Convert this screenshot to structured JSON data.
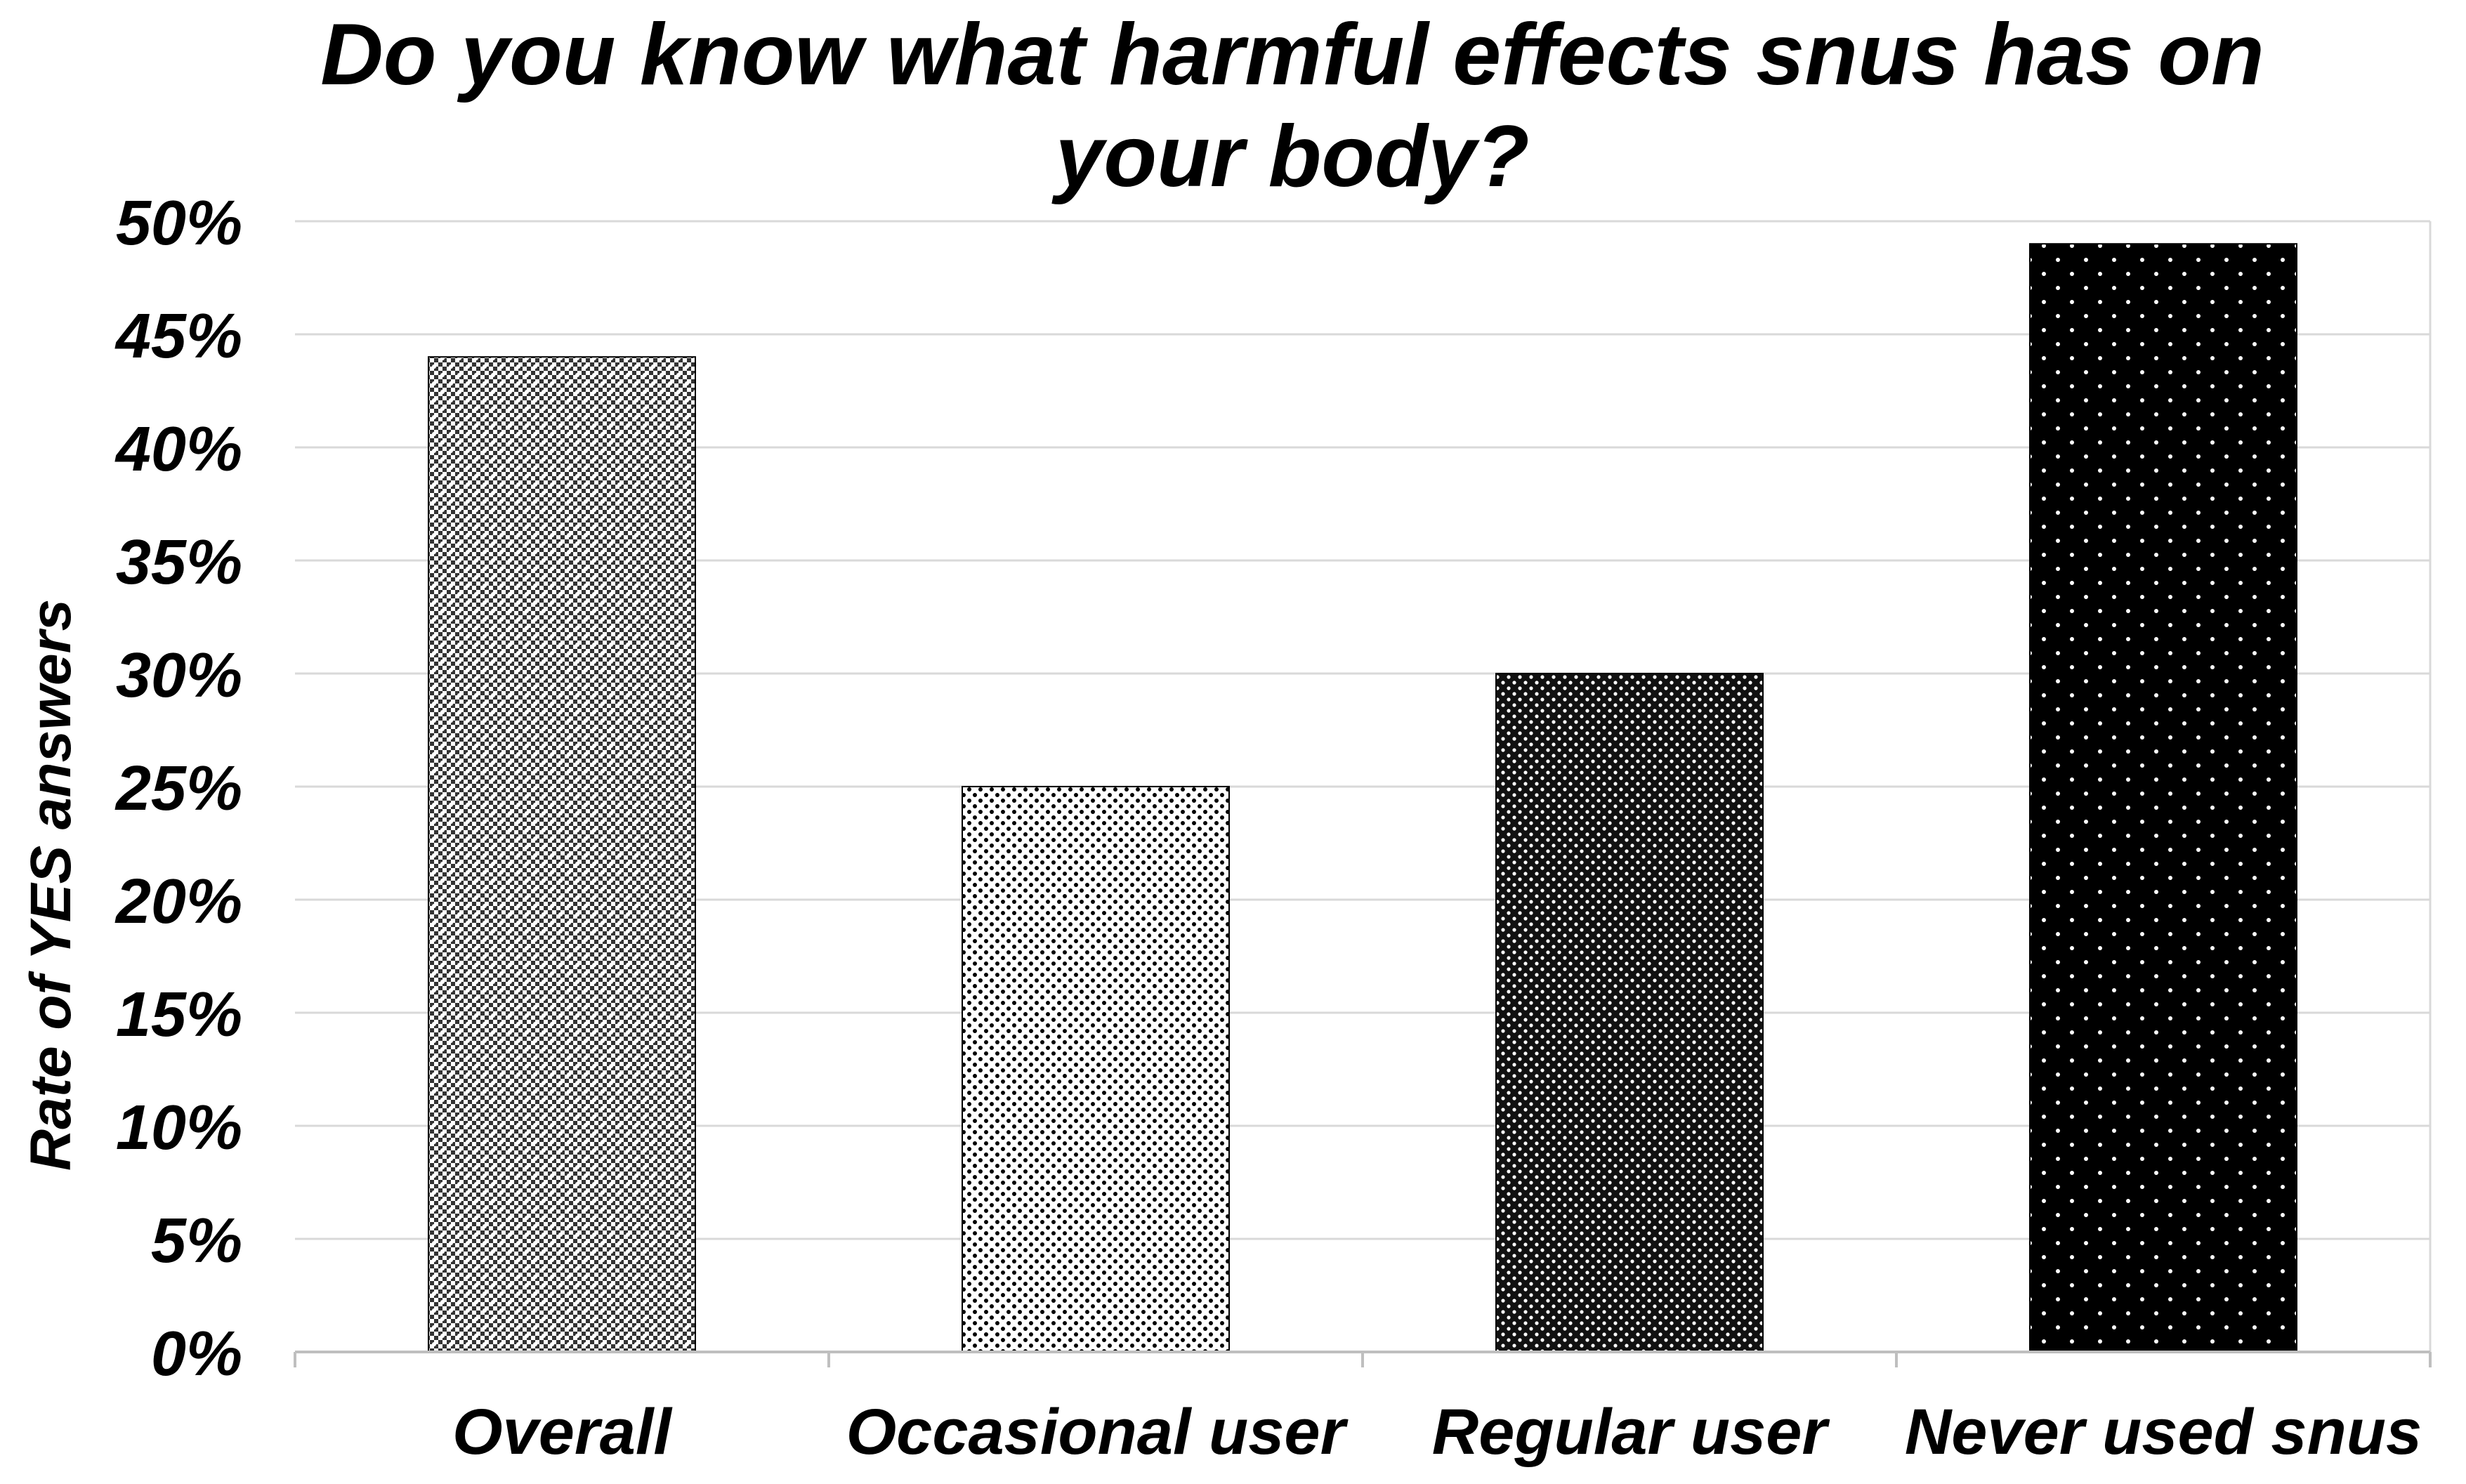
{
  "chart_data": {
    "type": "bar",
    "title": "Do you know what harmful effects snus has on your body?",
    "title_lines": [
      "Do you know what harmful effects snus has on",
      "your body?"
    ],
    "xlabel": "",
    "ylabel": "Rate of YES answers",
    "categories": [
      "Overall",
      "Occasional user",
      "Regular user",
      "Never used snus"
    ],
    "values": [
      44,
      25,
      30,
      49
    ],
    "value_unit": "%",
    "ylim": [
      0,
      50
    ],
    "ytick_values": [
      0,
      5,
      10,
      15,
      20,
      25,
      30,
      35,
      40,
      45,
      50
    ],
    "ytick_labels": [
      "0%",
      "5%",
      "10%",
      "15%",
      "20%",
      "25%",
      "30%",
      "35%",
      "40%",
      "45%",
      "50%"
    ],
    "grid": true,
    "legend": "none",
    "bar_fills": [
      {
        "pattern": "checker-gray",
        "base": "#6a6a6a"
      },
      {
        "pattern": "light-dots",
        "base": "#ffffff"
      },
      {
        "pattern": "dense-dots",
        "base": "#111111"
      },
      {
        "pattern": "sparse-dots",
        "base": "#000000"
      }
    ],
    "colors": {
      "grid": "#d9d9d9",
      "axis": "#bfbfbf",
      "text": "#000000"
    }
  }
}
